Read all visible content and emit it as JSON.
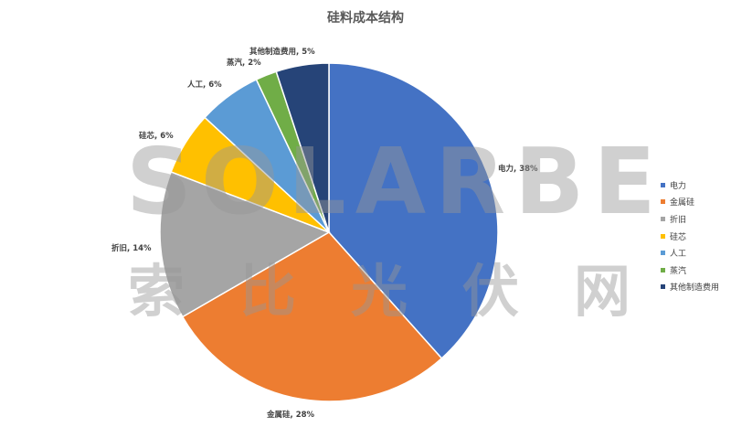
{
  "chart_data": {
    "type": "pie",
    "title": "硅料成本结构",
    "categories": [
      "电力",
      "金属硅",
      "折旧",
      "硅芯",
      "人工",
      "蒸汽",
      "其他制造费用"
    ],
    "values": [
      38,
      28,
      14,
      6,
      6,
      2,
      5
    ],
    "data_labels": [
      "电力, 38%",
      "金属硅, 28%",
      "折旧, 14%",
      "硅芯, 6%",
      "人工, 6%",
      "蒸汽, 2%",
      "其他制造费用, 5%"
    ],
    "colors": [
      "#4472C4",
      "#ED7D31",
      "#A5A5A5",
      "#FFC000",
      "#5B9BD5",
      "#70AD47",
      "#264478"
    ],
    "legend": "right",
    "start": "top, clockwise"
  },
  "watermark": {
    "line1": "SOLARBE",
    "line2": "索比光伏网"
  }
}
